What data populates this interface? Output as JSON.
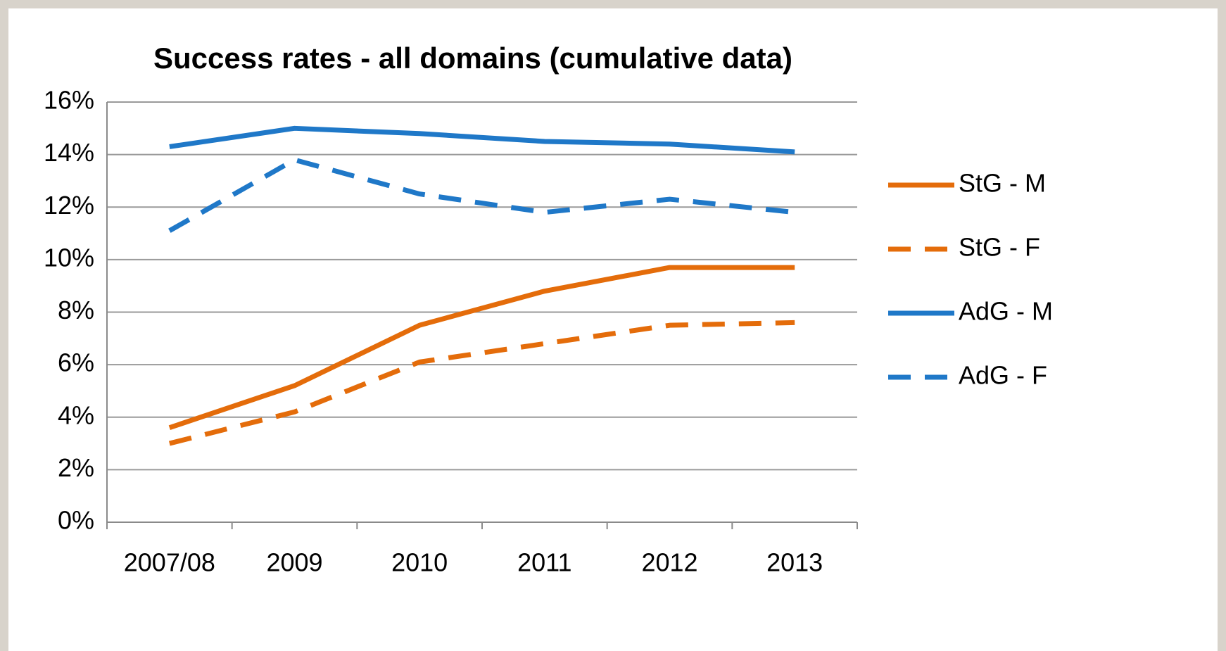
{
  "chart_data": {
    "type": "line",
    "title": "Success rates - all domains (cumulative data)",
    "categories": [
      "2007/08",
      "2009",
      "2010",
      "2011",
      "2012",
      "2013"
    ],
    "series": [
      {
        "name": "StG - M",
        "color": "#e46c0a",
        "style": "solid",
        "values": [
          3.6,
          5.2,
          7.5,
          8.8,
          9.7,
          9.7
        ]
      },
      {
        "name": "StG - F",
        "color": "#e46c0a",
        "style": "dashed",
        "values": [
          3.0,
          4.2,
          6.1,
          6.8,
          7.5,
          7.6
        ]
      },
      {
        "name": "AdG - M",
        "color": "#1f78c8",
        "style": "solid",
        "values": [
          14.3,
          15.0,
          14.8,
          14.5,
          14.4,
          14.1
        ]
      },
      {
        "name": "AdG - F",
        "color": "#1f78c8",
        "style": "dashed",
        "values": [
          11.1,
          13.8,
          12.5,
          11.8,
          12.3,
          11.8
        ]
      }
    ],
    "ylim": [
      0,
      16
    ],
    "yticks": [
      {
        "value": 0,
        "label": "0%"
      },
      {
        "value": 2,
        "label": "2%"
      },
      {
        "value": 4,
        "label": "4%"
      },
      {
        "value": 6,
        "label": "6%"
      },
      {
        "value": 8,
        "label": "8%"
      },
      {
        "value": 10,
        "label": "10%"
      },
      {
        "value": 12,
        "label": "12%"
      },
      {
        "value": 14,
        "label": "14%"
      },
      {
        "value": 16,
        "label": "16%"
      }
    ],
    "grid": true,
    "legend": "right"
  }
}
